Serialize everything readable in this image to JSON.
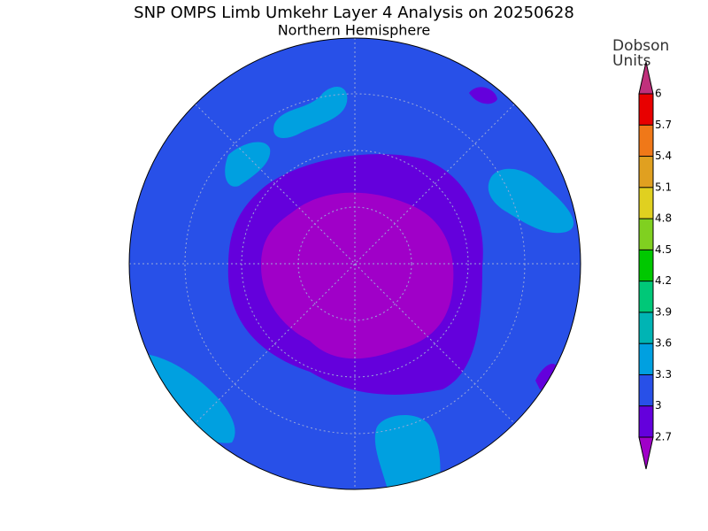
{
  "title": "SNP OMPS Limb Umkehr Layer 4 Analysis on 20250628",
  "subtitle": "Northern Hemisphere",
  "colorbar": {
    "label": [
      "Dobson",
      "Units"
    ],
    "ticks": [
      2.7,
      3,
      3.3,
      3.6,
      3.9,
      4.2,
      4.5,
      4.8,
      5.1,
      5.4,
      5.7,
      6
    ],
    "colors": [
      "#a000c8",
      "#6400dc",
      "#2850e8",
      "#00a0e0",
      "#00b4b4",
      "#00c878",
      "#00c800",
      "#80d020",
      "#e0d020",
      "#e0a020",
      "#f07818",
      "#e80000",
      "#c0307c"
    ]
  }
}
